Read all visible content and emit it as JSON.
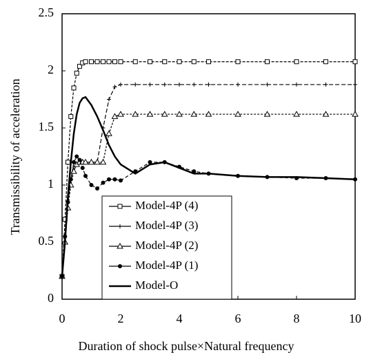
{
  "chart_data": {
    "type": "line",
    "xlabel": "Duration of shock pulse×Natural frequency",
    "ylabel": "Transmissibility of acceleration",
    "x": [
      0,
      0.1,
      0.2,
      0.3,
      0.4,
      0.5,
      0.6,
      0.7,
      0.8,
      1,
      1.2,
      1.4,
      1.6,
      1.8,
      2,
      2.5,
      3,
      3.5,
      4,
      4.5,
      5,
      6,
      7,
      8,
      9,
      10
    ],
    "series": [
      {
        "name": "Model-4P (4)",
        "color": "#000000",
        "marker": "square",
        "dash": "4 2",
        "values": [
          0.2,
          0.7,
          1.2,
          1.6,
          1.85,
          1.98,
          2.04,
          2.07,
          2.08,
          2.08,
          2.08,
          2.08,
          2.08,
          2.08,
          2.08,
          2.08,
          2.08,
          2.08,
          2.08,
          2.08,
          2.08,
          2.08,
          2.08,
          2.08,
          2.08,
          2.08
        ]
      },
      {
        "name": "Model-4P (3)",
        "color": "#000000",
        "marker": "plus",
        "dash": "6 3",
        "values": [
          0.2,
          0.55,
          0.85,
          1.05,
          1.15,
          1.19,
          1.2,
          1.2,
          1.2,
          1.2,
          1.2,
          1.5,
          1.75,
          1.86,
          1.88,
          1.88,
          1.88,
          1.88,
          1.88,
          1.88,
          1.88,
          1.88,
          1.88,
          1.88,
          1.88,
          1.88
        ]
      },
      {
        "name": "Model-4P (2)",
        "color": "#000000",
        "marker": "triangle",
        "dash": "3 2",
        "values": [
          0.2,
          0.5,
          0.8,
          1.0,
          1.12,
          1.18,
          1.2,
          1.2,
          1.2,
          1.2,
          1.2,
          1.2,
          1.45,
          1.6,
          1.62,
          1.62,
          1.62,
          1.62,
          1.62,
          1.62,
          1.62,
          1.62,
          1.62,
          1.62,
          1.62,
          1.62
        ]
      },
      {
        "name": "Model-4P (1)",
        "color": "#000000",
        "marker": "dot",
        "dash": "5 3",
        "values": [
          0.2,
          0.55,
          0.85,
          1.05,
          1.2,
          1.25,
          1.22,
          1.15,
          1.08,
          1.0,
          0.97,
          1.02,
          1.05,
          1.05,
          1.04,
          1.12,
          1.2,
          1.2,
          1.16,
          1.12,
          1.1,
          1.08,
          1.07,
          1.06,
          1.06,
          1.05
        ]
      },
      {
        "name": "Model-O",
        "color": "#000000",
        "marker": "none",
        "dash": "none",
        "values": [
          0.2,
          0.5,
          0.9,
          1.2,
          1.45,
          1.62,
          1.72,
          1.76,
          1.77,
          1.7,
          1.6,
          1.48,
          1.35,
          1.25,
          1.18,
          1.1,
          1.18,
          1.2,
          1.15,
          1.1,
          1.1,
          1.08,
          1.07,
          1.07,
          1.06,
          1.05
        ]
      }
    ],
    "xlim": [
      0,
      10
    ],
    "xticks": [
      0,
      2,
      4,
      6,
      8,
      10
    ],
    "ylim": [
      0,
      2.5
    ],
    "yticks": [
      0,
      0.5,
      1,
      1.5,
      2,
      2.5
    ],
    "legend": "lower-left"
  }
}
